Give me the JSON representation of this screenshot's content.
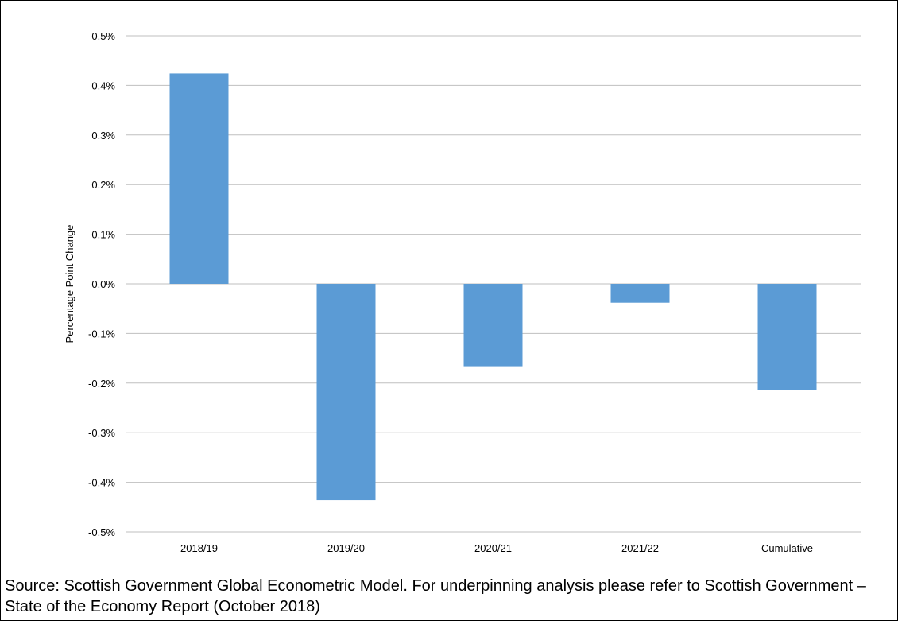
{
  "chart_data": {
    "type": "bar",
    "title": "",
    "xlabel": "",
    "ylabel": "Percentage Point Change",
    "categories": [
      "2018/19",
      "2019/20",
      "2020/21",
      "2021/22",
      "Cumulative"
    ],
    "values": [
      0.424,
      -0.436,
      -0.166,
      -0.038,
      -0.214
    ],
    "ylim": [
      -0.5,
      0.5
    ],
    "yticks": [
      0.5,
      0.4,
      0.3,
      0.2,
      0.1,
      0.0,
      -0.1,
      -0.2,
      -0.3,
      -0.4,
      -0.5
    ],
    "ytick_labels": [
      "0.5%",
      "0.4%",
      "0.3%",
      "0.2%",
      "0.1%",
      "0.0%",
      "-0.1%",
      "-0.2%",
      "-0.3%",
      "-0.4%",
      "-0.5%"
    ],
    "grid": true,
    "legend": "none",
    "bar_color": "#5b9bd5",
    "grid_color": "#bfbfbf"
  },
  "source_note": "Source: Scottish Government Global Econometric Model.  For underpinning analysis please refer to Scottish Government – State of the Economy Report (October 2018)"
}
